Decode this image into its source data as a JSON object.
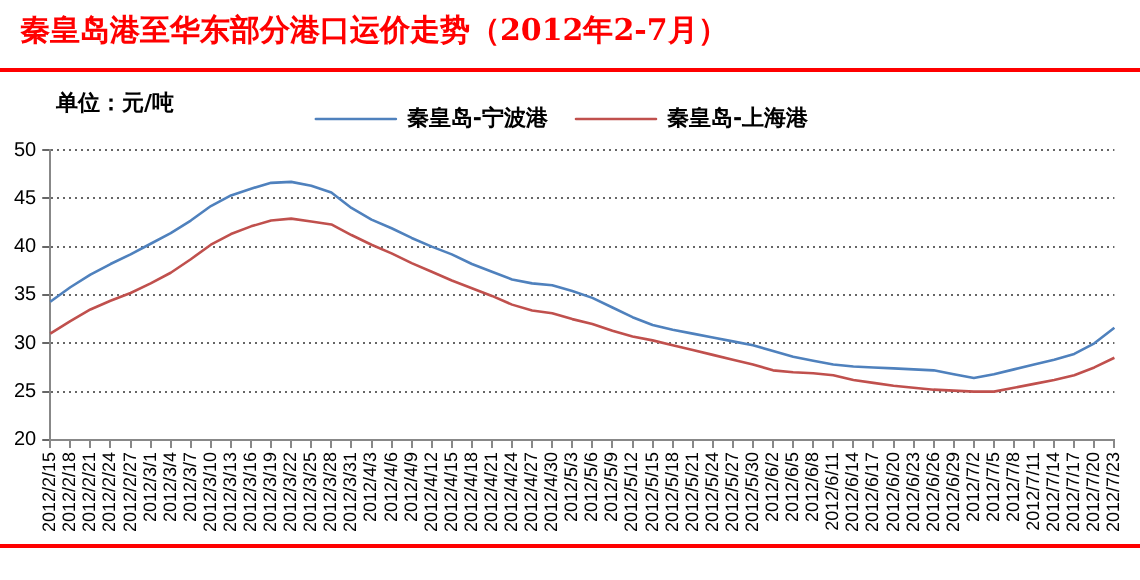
{
  "chart_data": {
    "type": "line",
    "title": "秦皇岛港至华东部分港口运价走势（2012年2-7月）",
    "ylabel": "单位：元/吨",
    "categories": [
      "2012/2/15",
      "2012/2/18",
      "2012/2/21",
      "2012/2/24",
      "2012/2/27",
      "2012/3/1",
      "2012/3/4",
      "2012/3/7",
      "2012/3/10",
      "2012/3/13",
      "2012/3/16",
      "2012/3/19",
      "2012/3/22",
      "2012/3/25",
      "2012/3/28",
      "2012/3/31",
      "2012/4/3",
      "2012/4/6",
      "2012/4/9",
      "2012/4/12",
      "2012/4/15",
      "2012/4/18",
      "2012/4/21",
      "2012/4/24",
      "2012/4/27",
      "2012/4/30",
      "2012/5/3",
      "2012/5/6",
      "2012/5/9",
      "2012/5/12",
      "2012/5/15",
      "2012/5/18",
      "2012/5/21",
      "2012/5/24",
      "2012/5/27",
      "2012/5/30",
      "2012/6/2",
      "2012/6/5",
      "2012/6/8",
      "2012/6/11",
      "2012/6/14",
      "2012/6/17",
      "2012/6/20",
      "2012/6/23",
      "2012/6/26",
      "2012/6/29",
      "2012/7/2",
      "2012/7/5",
      "2012/7/8",
      "2012/7/11",
      "2012/7/14",
      "2012/7/17",
      "2012/7/20",
      "2012/7/23"
    ],
    "series": [
      {
        "name": "秦皇岛-宁波港",
        "color": "#4f81bd",
        "values": [
          34.3,
          35.8,
          37.1,
          38.2,
          39.2,
          40.3,
          41.4,
          42.7,
          44.2,
          45.3,
          46.0,
          46.6,
          46.7,
          46.3,
          45.6,
          44.0,
          42.8,
          41.9,
          40.9,
          40.0,
          39.2,
          38.2,
          37.4,
          36.6,
          36.2,
          36.0,
          35.4,
          34.7,
          33.7,
          32.7,
          31.9,
          31.4,
          31.0,
          30.6,
          30.2,
          29.8,
          29.2,
          28.6,
          28.2,
          27.8,
          27.6,
          27.5,
          27.4,
          27.3,
          27.2,
          26.8,
          26.4,
          26.8,
          27.3,
          27.8,
          28.3,
          28.9,
          30.0,
          31.6
        ]
      },
      {
        "name": "秦皇岛-上海港",
        "color": "#c0504d",
        "values": [
          31.0,
          32.3,
          33.5,
          34.4,
          35.2,
          36.2,
          37.3,
          38.7,
          40.2,
          41.3,
          42.1,
          42.7,
          42.9,
          42.6,
          42.3,
          41.2,
          40.2,
          39.3,
          38.3,
          37.4,
          36.5,
          35.7,
          34.9,
          34.0,
          33.4,
          33.1,
          32.5,
          32.0,
          31.3,
          30.7,
          30.3,
          29.8,
          29.3,
          28.8,
          28.3,
          27.8,
          27.2,
          27.0,
          26.9,
          26.7,
          26.2,
          25.9,
          25.6,
          25.4,
          25.2,
          25.1,
          25.0,
          25.0,
          25.4,
          25.8,
          26.2,
          26.7,
          27.5,
          28.5
        ]
      }
    ],
    "ylim": [
      20,
      50
    ],
    "yticks": [
      20,
      25,
      30,
      35,
      40,
      45,
      50
    ],
    "grid": "y",
    "legend": "top",
    "marker": "none",
    "line_style": "solid"
  }
}
